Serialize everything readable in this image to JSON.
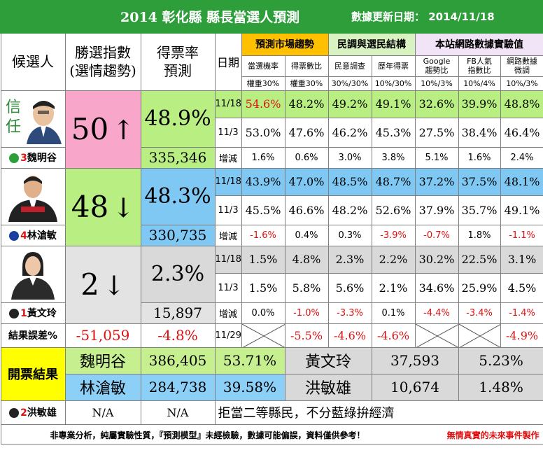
{
  "title": "2014 彰化縣 縣長當選人預測",
  "updated": "數據更新日期： 2014/11/18",
  "headers": {
    "candidate": "候選人",
    "index": "勝選指數\n(選情趨勢)",
    "index_l1": "勝選指數",
    "index_l2": "(選情趨勢)",
    "rate_l1": "得票率",
    "rate_l2": "預測",
    "date": "日期",
    "group1": "預測市場趨勢",
    "group2": "民調與選民結構",
    "group3": "本站網路數據實驗值",
    "cols": [
      "當選機率",
      "得票數比",
      "民意調查",
      "歷年得票",
      "Google\n趨勢比",
      "FB人氣\n指數比",
      "網路數據\n微調"
    ],
    "col_l1": [
      "當選機率",
      "得票數比",
      "民意調查",
      "歷年得票",
      "Google",
      "FB人氣",
      "網路數據"
    ],
    "col_l2": [
      "",
      "",
      "",
      "",
      "趨勢比",
      "指數比",
      "微調"
    ],
    "weights": [
      "權重30%",
      "權重30%",
      "30%/30%",
      "10%/30%",
      "10%/3%",
      "10%/4%",
      "10%/3%"
    ]
  },
  "candidates": [
    {
      "number": "3",
      "name": "魏明谷",
      "index": "50",
      "arrow": "↑",
      "rate": "48.9%",
      "votes": "335,346",
      "rows": [
        {
          "date": "11/18",
          "values": [
            "54.6%",
            "48.2%",
            "49.2%",
            "49.1%",
            "32.6%",
            "39.9%",
            "48.8%"
          ]
        },
        {
          "date": "11/3",
          "values": [
            "53.0%",
            "47.6%",
            "46.2%",
            "45.3%",
            "27.5%",
            "38.4%",
            "46.4%"
          ]
        },
        {
          "date": "增減",
          "values": [
            "1.6%",
            "0.6%",
            "3.0%",
            "3.8%",
            "5.1%",
            "1.6%",
            "2.4%"
          ]
        }
      ]
    },
    {
      "number": "4",
      "name": "林滄敏",
      "index": "48",
      "arrow": "↓",
      "rate": "48.3%",
      "votes": "330,735",
      "rows": [
        {
          "date": "11/18",
          "values": [
            "43.9%",
            "47.0%",
            "48.5%",
            "48.7%",
            "37.2%",
            "37.5%",
            "48.1%"
          ]
        },
        {
          "date": "11/3",
          "values": [
            "45.5%",
            "46.6%",
            "48.2%",
            "52.6%",
            "37.9%",
            "35.7%",
            "49.1%"
          ]
        },
        {
          "date": "增減",
          "values": [
            "-1.6%",
            "0.4%",
            "0.3%",
            "-3.9%",
            "-0.7%",
            "1.8%",
            "-1.1%"
          ]
        }
      ]
    },
    {
      "number": "1",
      "name": "黃文玲",
      "index": "2",
      "arrow": "↓",
      "rate": "2.3%",
      "votes": "15,897",
      "rows": [
        {
          "date": "11/18",
          "values": [
            "1.5%",
            "4.8%",
            "2.3%",
            "2.2%",
            "30.2%",
            "22.5%",
            "3.1%"
          ]
        },
        {
          "date": "11/3",
          "values": [
            "1.5%",
            "5.8%",
            "5.6%",
            "2.1%",
            "34.6%",
            "25.9%",
            "4.5%"
          ]
        },
        {
          "date": "增減",
          "values": [
            "0.0%",
            "-1.0%",
            "-3.3%",
            "0.1%",
            "-4.4%",
            "-3.4%",
            "-1.4%"
          ]
        }
      ]
    }
  ],
  "error_row": {
    "label": "結果誤差%",
    "votes": "-51,059",
    "rate": "-4.8%",
    "date": "11/29",
    "values": [
      "",
      "-5.5%",
      "-4.6%",
      "-4.6%",
      "",
      "",
      "-4.9%"
    ]
  },
  "results": {
    "label": "開票結果",
    "rows": [
      {
        "name": "魏明谷",
        "votes": "386,405",
        "pct": "53.71%",
        "name2": "黃文玲",
        "votes2": "37,593",
        "pct2": "5.23%"
      },
      {
        "name": "林滄敏",
        "votes": "284,738",
        "pct": "39.58%",
        "name2": "洪敏雄",
        "votes2": "10,674",
        "pct2": "1.48%"
      }
    ]
  },
  "extra_candidate": {
    "number": "2",
    "name": "洪敏雄",
    "index": "N/A",
    "rate": "N/A",
    "slogan": "拒當二等縣民，不分藍綠拚經濟"
  },
  "footer": {
    "disclaimer": "非專業分析，純屬實驗性質，『預測模型』未經檢驗，數據可能偏誤，資料僅供參考！",
    "credit": "無情真實的未來事件製作"
  },
  "colors": {
    "title_bg": "#2e9e3b",
    "pink": "#f8a6c9",
    "green": "#b9ee83",
    "blue": "#7fc8f4",
    "grey": "#d9d9d9",
    "yellow": "#ffff00",
    "orange": "#ffc000",
    "negative": "#e01010"
  }
}
